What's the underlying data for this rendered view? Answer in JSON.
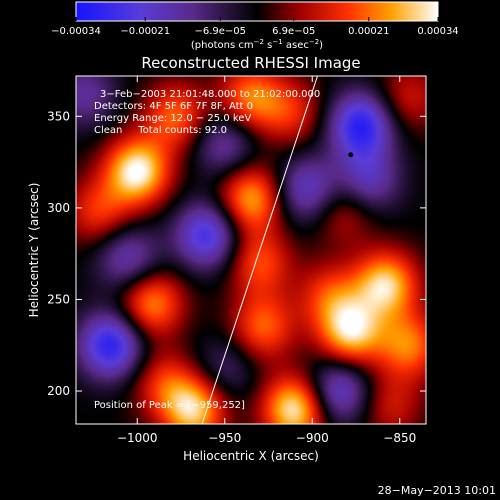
{
  "chart_data": {
    "type": "heatmap",
    "title": "Reconstructed RHESSI Image",
    "xlabel": "Heliocentric X (arcsec)",
    "ylabel": "Heliocentric Y (arcsec)",
    "xlim": [
      -1035,
      -835
    ],
    "ylim": [
      182,
      372
    ],
    "x_ticks": [
      -1000,
      -950,
      -900,
      -850
    ],
    "x_tick_labels": [
      "−1000",
      "−950",
      "−900",
      "−850"
    ],
    "y_ticks": [
      200,
      250,
      300,
      350
    ],
    "y_tick_labels": [
      "200",
      "250",
      "300",
      "350"
    ],
    "colorbar": {
      "range": [
        -0.00034,
        0.00034
      ],
      "ticks": [
        -0.00034,
        -0.00021,
        -6.9e-05,
        6.9e-05,
        0.00021,
        0.00034
      ],
      "tick_labels": [
        "−0.00034",
        "−0.00021",
        "−6.9e−05",
        "6.9e−05",
        "0.00021",
        "0.00034"
      ],
      "unit_prefix": "(photons cm",
      "unit_exp1": "−2",
      "unit_mid": " s",
      "unit_exp2": "−1",
      "unit_suffix": " asec",
      "unit_exp3": "−2",
      "unit_close": ")"
    },
    "annotations": [
      "3−Feb−2003 21:01:48.000 to 21:02:00.000",
      "Detectors: 4F 5F 6F 7F 8F, Att 0",
      "Energy Range: 12.0 − 25.0 keV",
      "Clean     Total counts: 92.0"
    ],
    "peak_label": "Position of Peak = [−959,252]",
    "peak": {
      "x": -959,
      "y": 252
    },
    "limb_line": [
      {
        "x": -963,
        "y": 182
      },
      {
        "x": -897,
        "y": 372
      }
    ],
    "marker": {
      "x": -878,
      "y": 329
    },
    "blobs": [
      {
        "x": -1000,
        "y": 320,
        "v": 0.00034
      },
      {
        "x": -978,
        "y": 350,
        "v": 0.0002
      },
      {
        "x": -992,
        "y": 248,
        "v": 0.00024
      },
      {
        "x": -1022,
        "y": 298,
        "v": 0.00016
      },
      {
        "x": -968,
        "y": 190,
        "v": 0.0003
      },
      {
        "x": -985,
        "y": 205,
        "v": 0.00014
      },
      {
        "x": -1015,
        "y": 225,
        "v": -0.0003
      },
      {
        "x": -1005,
        "y": 272,
        "v": -0.00018
      },
      {
        "x": -960,
        "y": 285,
        "v": -0.00026
      },
      {
        "x": -1030,
        "y": 362,
        "v": -0.00014
      },
      {
        "x": -950,
        "y": 335,
        "v": -0.00016
      },
      {
        "x": -935,
        "y": 305,
        "v": 0.00026
      },
      {
        "x": -935,
        "y": 360,
        "v": 0.00022
      },
      {
        "x": -930,
        "y": 270,
        "v": 0.00018
      },
      {
        "x": -928,
        "y": 235,
        "v": 0.0002
      },
      {
        "x": -910,
        "y": 190,
        "v": 0.00033
      },
      {
        "x": -903,
        "y": 310,
        "v": -0.0002
      },
      {
        "x": -912,
        "y": 352,
        "v": 0.00014
      },
      {
        "x": -872,
        "y": 345,
        "v": -0.0003
      },
      {
        "x": -868,
        "y": 315,
        "v": -0.00018
      },
      {
        "x": -882,
        "y": 298,
        "v": 0.00012
      },
      {
        "x": -858,
        "y": 258,
        "v": 0.0003
      },
      {
        "x": -878,
        "y": 232,
        "v": 0.0003
      },
      {
        "x": -845,
        "y": 225,
        "v": 0.00022
      },
      {
        "x": -890,
        "y": 252,
        "v": 0.00016
      },
      {
        "x": -885,
        "y": 200,
        "v": -0.00022
      },
      {
        "x": -855,
        "y": 192,
        "v": 0.00012
      },
      {
        "x": -950,
        "y": 212,
        "v": -0.0001
      },
      {
        "x": -845,
        "y": 360,
        "v": 0.00012
      }
    ]
  },
  "footer": {
    "date": "28−May−2013 10:01"
  }
}
